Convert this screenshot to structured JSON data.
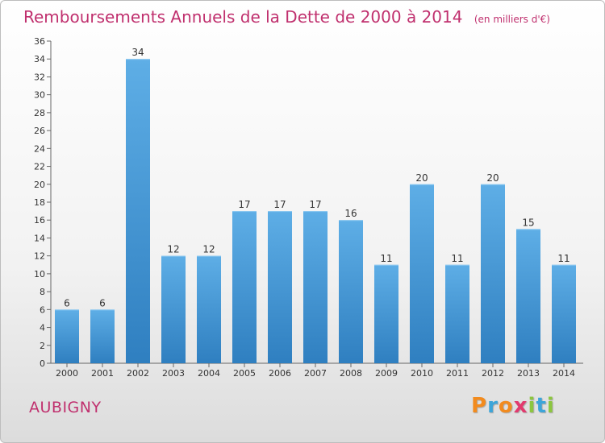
{
  "title": "Remboursements Annuels de la Dette de 2000 à 2014",
  "unit": "(en milliers d'€)",
  "commune": "AUBIGNY",
  "logo": {
    "letters": [
      "P",
      "r",
      "o",
      "x",
      "i",
      "t",
      "i"
    ],
    "colors": [
      "#f28b1e",
      "#3da5d9",
      "#f28b1e",
      "#e23a6e",
      "#8cc63f",
      "#3da5d9",
      "#8cc63f"
    ]
  },
  "colors": {
    "bar_top": "#5eaee6",
    "bar_bottom": "#2f7fc0",
    "title": "#c0306e"
  },
  "chart_data": {
    "type": "bar",
    "categories": [
      "2000",
      "2001",
      "2002",
      "2003",
      "2004",
      "2005",
      "2006",
      "2007",
      "2008",
      "2009",
      "2010",
      "2011",
      "2012",
      "2013",
      "2014"
    ],
    "values": [
      6,
      6,
      34,
      12,
      12,
      17,
      17,
      17,
      16,
      11,
      20,
      11,
      20,
      15,
      11
    ],
    "ylim": [
      0,
      36
    ],
    "yticks": [
      0,
      2,
      4,
      6,
      8,
      10,
      12,
      14,
      16,
      18,
      20,
      22,
      24,
      26,
      28,
      30,
      32,
      34,
      36
    ],
    "grid": false,
    "title": "Remboursements Annuels de la Dette de 2000 à 2014",
    "xlabel": "",
    "ylabel": ""
  }
}
